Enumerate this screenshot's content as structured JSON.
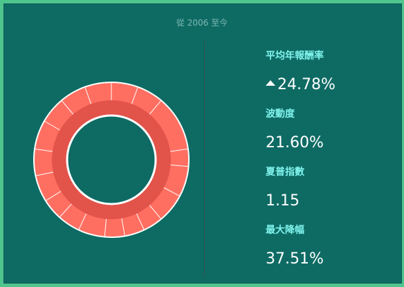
{
  "header": {
    "period_label": "從 2006 至今"
  },
  "stats": [
    {
      "label": "平均年報酬率",
      "value": "24.78%",
      "trend_icon": "triangle-up-icon"
    },
    {
      "label": "波動度",
      "value": "21.60%"
    },
    {
      "label": "夏普指數",
      "value": "1.15"
    },
    {
      "label": "最大降幅",
      "value": "37.51%"
    }
  ],
  "donut": {
    "outer_ring_segments": 16,
    "outer_color": "#ff6f61",
    "inner_color": "#e2534a",
    "separator_color": "#ffffff"
  }
}
